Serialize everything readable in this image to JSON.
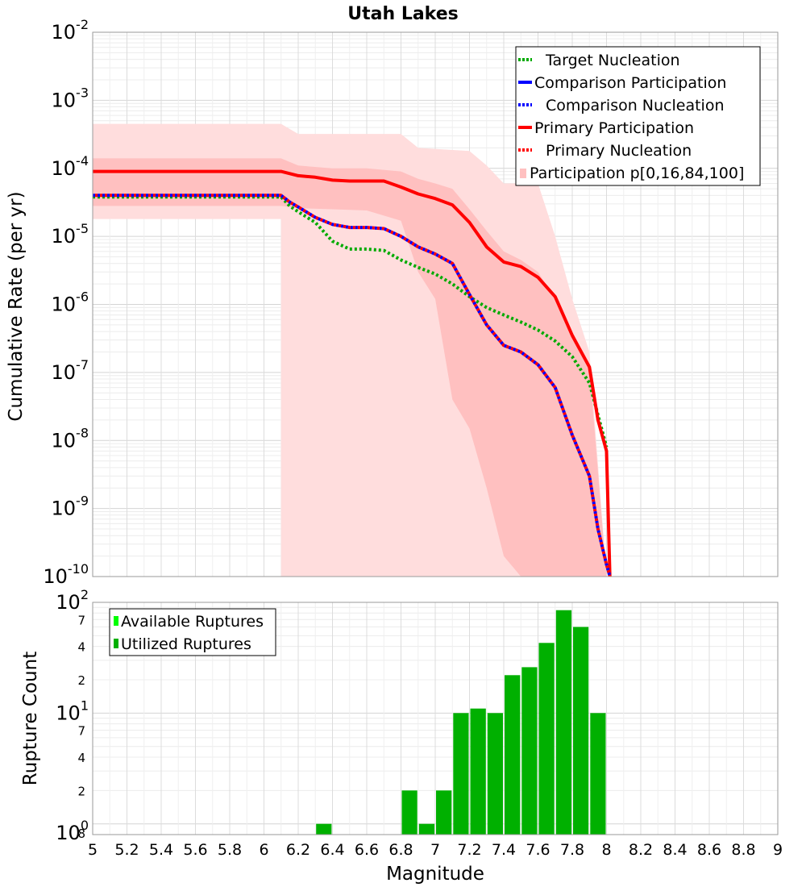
{
  "chart_data": [
    {
      "type": "line",
      "title": "Utah Lakes",
      "xlabel": "",
      "ylabel": "Cumulative Rate (per yr)",
      "yscale": "log",
      "xlim": [
        5,
        9
      ],
      "ylim_exp": [
        -10,
        -2
      ],
      "legend": {
        "position": "top-right",
        "entries": [
          {
            "label": "Target Nucleation",
            "color": "#00aa00",
            "style": "dotted"
          },
          {
            "label": "Comparison Participation",
            "color": "#0000ff",
            "style": "solid"
          },
          {
            "label": "Comparison Nucleation",
            "color": "#0000ff",
            "style": "dotted"
          },
          {
            "label": "Primary Participation",
            "color": "#ff0000",
            "style": "solid"
          },
          {
            "label": "Primary Nucleation",
            "color": "#ff0000",
            "style": "dotted"
          },
          {
            "label": "Participation p[0,16,84,100]",
            "color": "#ffc0c0",
            "style": "band"
          }
        ]
      },
      "bands": {
        "outer_color": "#ffdddd",
        "inner_color": "#ffc0c0",
        "outer": [
          {
            "x": 5.0,
            "hi": 0.00045,
            "lo": 1.8e-05
          },
          {
            "x": 6.1,
            "hi": 0.00045,
            "lo": 1.8e-05
          },
          {
            "x": 6.1,
            "hi": 0.00045,
            "lo": 1e-10
          },
          {
            "x": 6.2,
            "hi": 0.00032,
            "lo": 1e-10
          },
          {
            "x": 6.8,
            "hi": 0.00032,
            "lo": 1e-10
          },
          {
            "x": 6.9,
            "hi": 0.0002,
            "lo": 1e-10
          },
          {
            "x": 7.2,
            "hi": 0.00018,
            "lo": 1e-10
          },
          {
            "x": 7.3,
            "hi": 0.00011,
            "lo": 1e-10
          },
          {
            "x": 7.4,
            "hi": 6e-05,
            "lo": 1e-10
          },
          {
            "x": 7.6,
            "hi": 6e-05,
            "lo": 1e-10
          },
          {
            "x": 7.7,
            "hi": 1e-05,
            "lo": 1e-10
          },
          {
            "x": 7.8,
            "hi": 1.2e-06,
            "lo": 1e-10
          },
          {
            "x": 7.9,
            "hi": 2e-07,
            "lo": 1e-10
          },
          {
            "x": 8.0,
            "hi": 1e-10,
            "lo": 1e-10
          }
        ],
        "inner": [
          {
            "x": 5.0,
            "hi": 0.00014,
            "lo": 2.8e-05
          },
          {
            "x": 6.1,
            "hi": 0.00014,
            "lo": 2.8e-05
          },
          {
            "x": 6.2,
            "hi": 0.00011,
            "lo": 2.6e-05
          },
          {
            "x": 6.4,
            "hi": 0.0001,
            "lo": 2.5e-05
          },
          {
            "x": 6.6,
            "hi": 0.0001,
            "lo": 2.4e-05
          },
          {
            "x": 6.8,
            "hi": 9e-05,
            "lo": 1.7e-05
          },
          {
            "x": 6.9,
            "hi": 7e-05,
            "lo": 3e-06
          },
          {
            "x": 7.0,
            "hi": 6e-05,
            "lo": 1.2e-06
          },
          {
            "x": 7.1,
            "hi": 5e-05,
            "lo": 4e-08
          },
          {
            "x": 7.2,
            "hi": 2.5e-05,
            "lo": 1.5e-08
          },
          {
            "x": 7.3,
            "hi": 1.2e-05,
            "lo": 2e-09
          },
          {
            "x": 7.4,
            "hi": 6e-06,
            "lo": 2e-10
          },
          {
            "x": 7.5,
            "hi": 4.5e-06,
            "lo": 1e-10
          },
          {
            "x": 7.6,
            "hi": 3e-06,
            "lo": 1e-10
          },
          {
            "x": 7.7,
            "hi": 1.2e-06,
            "lo": 1e-10
          },
          {
            "x": 7.8,
            "hi": 4e-07,
            "lo": 1e-10
          },
          {
            "x": 7.9,
            "hi": 1.2e-07,
            "lo": 1e-10
          },
          {
            "x": 8.0,
            "hi": 1e-10,
            "lo": 1e-10
          }
        ]
      },
      "series": [
        {
          "name": "Target Nucleation",
          "color": "#00aa00",
          "style": "dotted",
          "x": [
            5.0,
            6.1,
            6.15,
            6.2,
            6.3,
            6.4,
            6.5,
            6.6,
            6.7,
            6.8,
            6.9,
            7.0,
            7.1,
            7.2,
            7.3,
            7.4,
            7.5,
            7.6,
            7.7,
            7.8,
            7.9,
            8.0
          ],
          "y": [
            3.8e-05,
            3.8e-05,
            2.8e-05,
            2.3e-05,
            1.6e-05,
            8.5e-06,
            6.5e-06,
            6.5e-06,
            6.2e-06,
            4.5e-06,
            3.5e-06,
            2.8e-06,
            2e-06,
            1.3e-06,
            9e-07,
            7e-07,
            5.5e-07,
            4.2e-07,
            2.9e-07,
            1.7e-07,
            7e-08,
            8e-09
          ]
        },
        {
          "name": "Primary Participation",
          "color": "#ff0000",
          "style": "solid",
          "x": [
            5.0,
            6.1,
            6.2,
            6.3,
            6.4,
            6.5,
            6.6,
            6.7,
            6.8,
            6.9,
            7.0,
            7.1,
            7.2,
            7.3,
            7.4,
            7.5,
            7.6,
            7.7,
            7.8,
            7.9,
            7.95,
            8.0,
            8.02
          ],
          "y": [
            9e-05,
            9e-05,
            7.8e-05,
            7.4e-05,
            6.7e-05,
            6.5e-05,
            6.5e-05,
            6.5e-05,
            5.3e-05,
            4.2e-05,
            3.6e-05,
            2.9e-05,
            1.6e-05,
            7e-06,
            4.2e-06,
            3.6e-06,
            2.5e-06,
            1.3e-06,
            3.5e-07,
            1.2e-07,
            2e-08,
            7e-09,
            1e-10
          ]
        },
        {
          "name": "Primary Nucleation",
          "color": "#ff0000",
          "style": "dotted",
          "secondary_color": "#0000ff",
          "x": [
            5.0,
            6.1,
            6.15,
            6.2,
            6.3,
            6.4,
            6.5,
            6.6,
            6.7,
            6.8,
            6.9,
            7.0,
            7.1,
            7.2,
            7.3,
            7.4,
            7.5,
            7.6,
            7.7,
            7.8,
            7.9,
            7.95,
            8.0,
            8.02
          ],
          "y": [
            4e-05,
            4e-05,
            3.2e-05,
            2.7e-05,
            1.9e-05,
            1.5e-05,
            1.35e-05,
            1.35e-05,
            1.3e-05,
            1e-05,
            7e-06,
            5.5e-06,
            4e-06,
            1.4e-06,
            5e-07,
            2.5e-07,
            2e-07,
            1.3e-07,
            6e-08,
            1.2e-08,
            3e-09,
            5e-10,
            1.5e-10,
            1e-10
          ]
        }
      ]
    },
    {
      "type": "bar",
      "xlabel": "Magnitude",
      "ylabel": "Rupture Count",
      "yscale": "log",
      "xlim": [
        5,
        9
      ],
      "ylim": [
        0.8,
        100
      ],
      "bar_width": 0.1,
      "legend": {
        "position": "top-left",
        "entries": [
          {
            "label": "Available Ruptures",
            "color": "#00ff00"
          },
          {
            "label": "Utilized Ruptures",
            "color": "#00b000"
          }
        ]
      },
      "series": [
        {
          "name": "Available Ruptures",
          "color": "#00ff00",
          "centers": [],
          "values": []
        },
        {
          "name": "Utilized Ruptures",
          "color": "#00b000",
          "centers": [
            6.35,
            6.85,
            6.95,
            7.05,
            7.15,
            7.25,
            7.35,
            7.45,
            7.55,
            7.65,
            7.75,
            7.85,
            7.95
          ],
          "values": [
            1,
            2,
            1,
            2,
            10,
            11,
            10,
            22,
            26,
            43,
            85,
            60,
            10
          ]
        }
      ]
    }
  ],
  "top_axis": {
    "major_labels": [
      {
        "base": "10",
        "exp": "-2"
      },
      {
        "base": "10",
        "exp": "-3"
      },
      {
        "base": "10",
        "exp": "-4"
      },
      {
        "base": "10",
        "exp": "-5"
      },
      {
        "base": "10",
        "exp": "-6"
      },
      {
        "base": "10",
        "exp": "-7"
      },
      {
        "base": "10",
        "exp": "-8"
      },
      {
        "base": "10",
        "exp": "-9"
      },
      {
        "base": "10",
        "exp": "-10"
      }
    ]
  },
  "bottom_axis": {
    "major_labels": [
      {
        "base": "10",
        "exp": "2"
      },
      {
        "base": "10",
        "exp": "1"
      },
      {
        "base": "10",
        "exp": "0"
      }
    ],
    "minor_labels": [
      "7",
      "4",
      "2",
      "7",
      "4",
      "2",
      "8"
    ]
  },
  "x_ticks": [
    "5",
    "5.2",
    "5.4",
    "5.6",
    "5.8",
    "6",
    "6.2",
    "6.4",
    "6.6",
    "6.8",
    "7",
    "7.2",
    "7.4",
    "7.6",
    "7.8",
    "8",
    "8.2",
    "8.4",
    "8.6",
    "8.8",
    "9"
  ]
}
